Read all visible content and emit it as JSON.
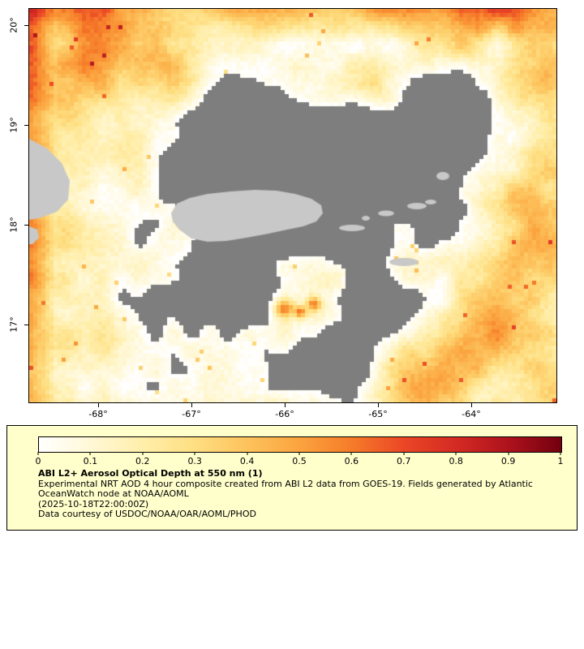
{
  "map": {
    "lat_labels": [
      "20°",
      "19°",
      "18°",
      "17°"
    ],
    "lon_labels": [
      "-68°",
      "-67°",
      "-66°",
      "-65°",
      "-64°"
    ]
  },
  "colors": {
    "no_data": "#7e7e7e",
    "land": "#c8c8c8",
    "legend_bg": "#ffffcc",
    "border": "#000000"
  },
  "legend": {
    "title": "ABI L2+ Aerosol Optical Depth at 550 nm (1)",
    "description_line1": "Experimental NRT AOD 4 hour composite created from ABI L2 data from GOES-19. Fields generated by Atlantic",
    "description_line2": "OceanWatch node at NOAA/AOML",
    "timestamp": "(2025-10-18T22:00:00Z)",
    "courtesy": "Data courtesy of USDOC/NOAA/OAR/AOML/PHOD",
    "colorbar": {
      "min": 0,
      "max": 1,
      "tick_labels": [
        "0",
        "0.1",
        "0.2",
        "0.3",
        "0.4",
        "0.5",
        "0.6",
        "0.7",
        "0.8",
        "0.9",
        "1"
      ],
      "stops": [
        "#ffffff",
        "#fff8d6",
        "#ffeeaa",
        "#fede81",
        "#fdc25c",
        "#fba33e",
        "#f67b29",
        "#ea4626",
        "#d42a23",
        "#ad121d",
        "#73000f"
      ]
    }
  }
}
